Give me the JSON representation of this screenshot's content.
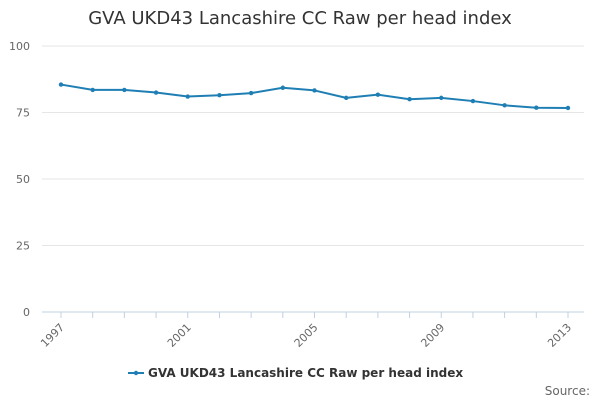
{
  "chart_data": {
    "type": "line",
    "title": "GVA UKD43 Lancashire CC Raw per head index",
    "xlabel": "",
    "ylabel": "",
    "x": [
      1997,
      1998,
      1999,
      2000,
      2001,
      2002,
      2003,
      2004,
      2005,
      2006,
      2007,
      2008,
      2009,
      2010,
      2011,
      2012,
      2013
    ],
    "series": [
      {
        "name": "GVA UKD43 Lancashire CC Raw per head index",
        "values": [
          85.5,
          83.5,
          83.5,
          82.5,
          81.0,
          81.5,
          82.3,
          84.3,
          83.3,
          80.5,
          81.7,
          80.0,
          80.5,
          79.3,
          77.7,
          76.8,
          76.7
        ],
        "color": "#1f7fb4"
      }
    ],
    "xticks": [
      "1997",
      "2001",
      "2005",
      "2009",
      "2013"
    ],
    "yticks": [
      "0",
      "25",
      "50",
      "75",
      "100"
    ],
    "ylim": [
      0,
      100
    ],
    "xlim": [
      1997,
      2013
    ],
    "grid": true,
    "legend": "bottom-center",
    "source_label": "Source:"
  }
}
